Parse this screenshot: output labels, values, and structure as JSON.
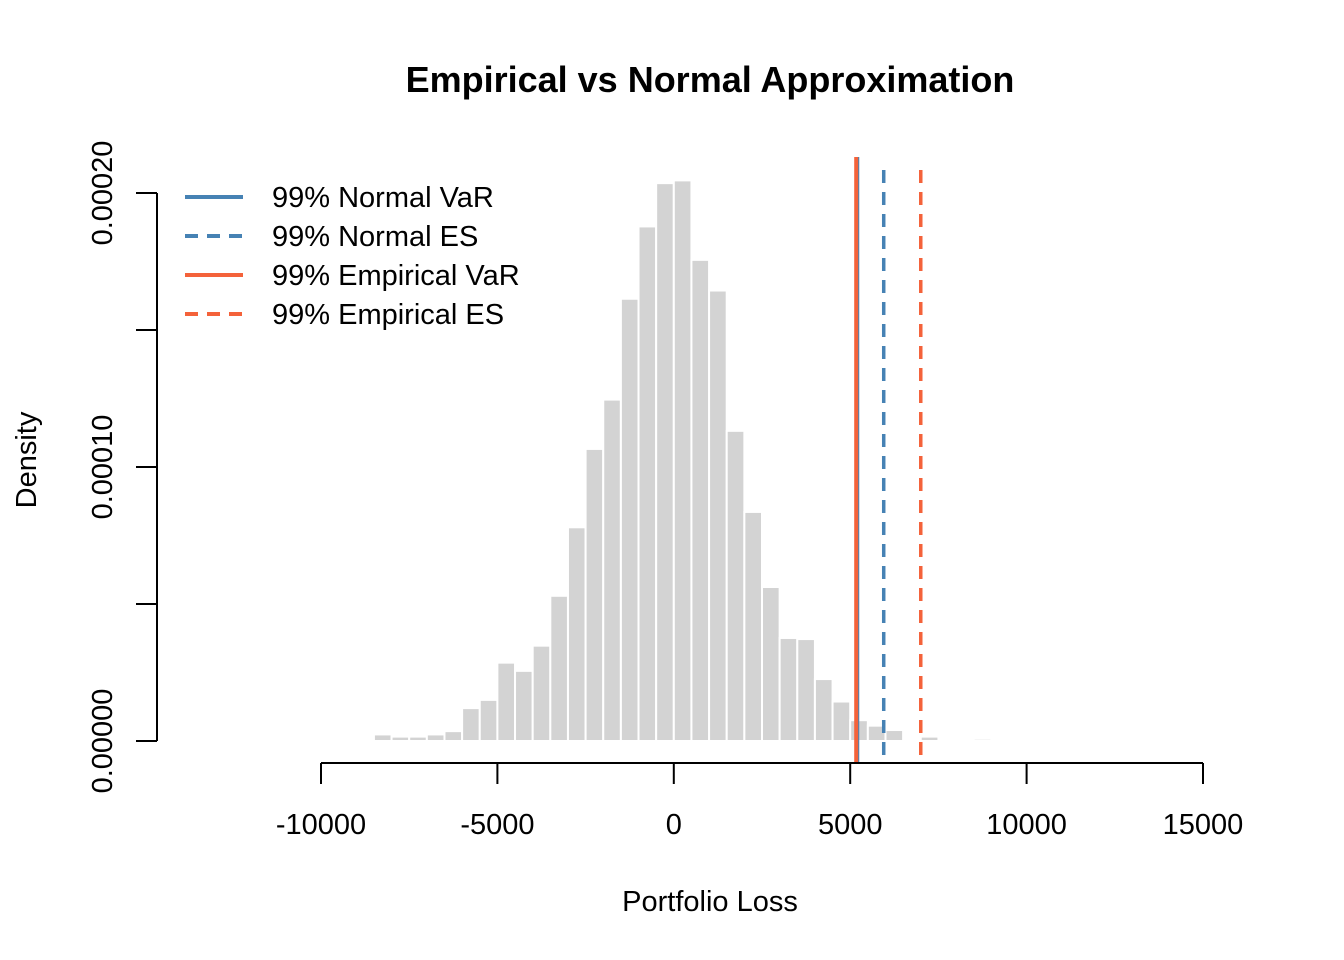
{
  "chart_data": {
    "type": "histogram",
    "title": "Empirical vs Normal Approximation",
    "xlabel": "Portfolio Loss",
    "ylabel": "Density",
    "xlim": [
      -10000,
      15000
    ],
    "ylim": [
      0,
      0.0002
    ],
    "x_ticks": [
      -10000,
      -5000,
      0,
      5000,
      10000,
      15000
    ],
    "x_tick_labels": [
      "-10000",
      "-5000",
      "0",
      "5000",
      "10000",
      "15000"
    ],
    "y_ticks": [
      0,
      5e-05,
      0.0001,
      0.00015,
      0.0002
    ],
    "y_tick_labels": [
      "0.00000",
      "",
      "0.00010",
      "",
      "0.00020"
    ],
    "bin_width": 500,
    "bins": [
      {
        "start": -9500,
        "density": 6e-07
      },
      {
        "start": -9000,
        "density": 0
      },
      {
        "start": -8500,
        "density": 2.4e-06
      },
      {
        "start": -8000,
        "density": 1.6e-06
      },
      {
        "start": -7500,
        "density": 1.6e-06
      },
      {
        "start": -7000,
        "density": 2.4e-06
      },
      {
        "start": -6500,
        "density": 3.6e-06
      },
      {
        "start": -6000,
        "density": 1.2e-05
      },
      {
        "start": -5500,
        "density": 1.5e-05
      },
      {
        "start": -5000,
        "density": 2.86e-05
      },
      {
        "start": -4500,
        "density": 2.56e-05
      },
      {
        "start": -4000,
        "density": 3.48e-05
      },
      {
        "start": -3500,
        "density": 5.3e-05
      },
      {
        "start": -3000,
        "density": 7.8e-05
      },
      {
        "start": -2500,
        "density": 0.0001066
      },
      {
        "start": -2000,
        "density": 0.0001246
      },
      {
        "start": -1500,
        "density": 0.0001614
      },
      {
        "start": -1000,
        "density": 0.0001878
      },
      {
        "start": -500,
        "density": 0.0002036
      },
      {
        "start": 0,
        "density": 0.0002046
      },
      {
        "start": 500,
        "density": 0.0001756
      },
      {
        "start": 1000,
        "density": 0.0001644
      },
      {
        "start": 1500,
        "density": 0.0001132
      },
      {
        "start": 2000,
        "density": 8.36e-05
      },
      {
        "start": 2500,
        "density": 5.62e-05
      },
      {
        "start": 3000,
        "density": 3.76e-05
      },
      {
        "start": 3500,
        "density": 3.72e-05
      },
      {
        "start": 4000,
        "density": 2.26e-05
      },
      {
        "start": 4500,
        "density": 1.44e-05
      },
      {
        "start": 5000,
        "density": 7.6e-06
      },
      {
        "start": 5500,
        "density": 5.6e-06
      },
      {
        "start": 6000,
        "density": 4e-06
      },
      {
        "start": 6500,
        "density": 0
      },
      {
        "start": 7000,
        "density": 1.6e-06
      },
      {
        "start": 7500,
        "density": 0
      },
      {
        "start": 8000,
        "density": 0
      },
      {
        "start": 8500,
        "density": 8e-07
      }
    ],
    "bar_color": "#d3d3d3",
    "lines": [
      {
        "label": "99% Normal VaR",
        "x": 5200,
        "color": "#4682b4",
        "style": "solid"
      },
      {
        "label": "99% Normal ES",
        "x": 5950,
        "color": "#4682b4",
        "style": "dashed"
      },
      {
        "label": "99% Empirical VaR",
        "x": 5170,
        "color": "#f4623a",
        "style": "solid"
      },
      {
        "label": "99% Empirical ES",
        "x": 7000,
        "color": "#f4623a",
        "style": "dashed"
      }
    ],
    "legend": {
      "position": "top-left",
      "entries": [
        {
          "label": "99% Normal VaR",
          "color": "#4682b4",
          "style": "solid"
        },
        {
          "label": "99% Normal ES",
          "color": "#4682b4",
          "style": "dashed"
        },
        {
          "label": "99% Empirical VaR",
          "color": "#f4623a",
          "style": "solid"
        },
        {
          "label": "99% Empirical ES",
          "color": "#f4623a",
          "style": "dashed"
        }
      ]
    }
  }
}
